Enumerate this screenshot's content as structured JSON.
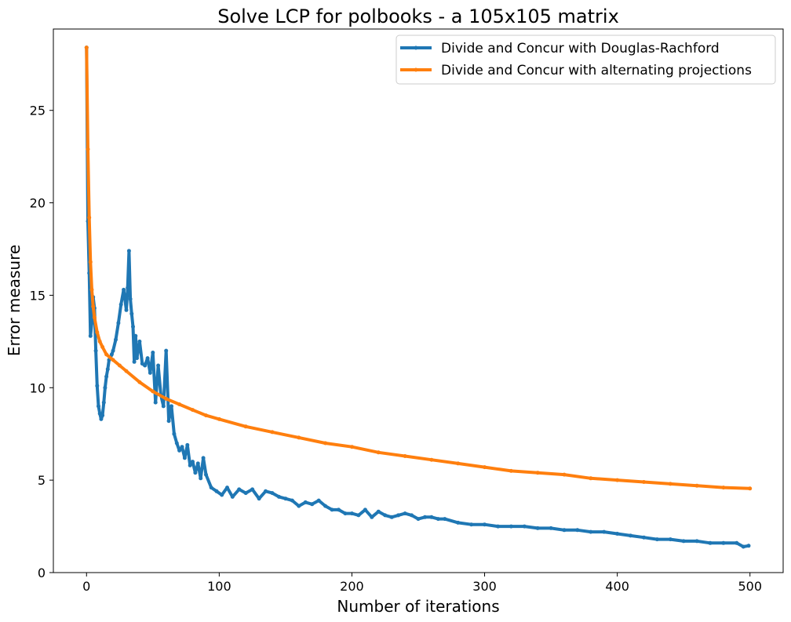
{
  "chart_data": {
    "type": "line",
    "title": "Solve LCP for polbooks - a 105x105 matrix",
    "xlabel": "Number of iterations",
    "ylabel": "Error measure",
    "xlim": [
      -25,
      525
    ],
    "ylim": [
      0,
      29.4
    ],
    "xticks": [
      0,
      100,
      200,
      300,
      400,
      500
    ],
    "yticks": [
      0,
      5,
      10,
      15,
      20,
      25
    ],
    "grid": false,
    "legend_position": "top-right",
    "series": [
      {
        "name": "Divide and Concur with Douglas-Rachford",
        "color": "#1f77b4",
        "x": [
          0,
          1,
          2,
          3,
          4,
          5,
          6,
          7,
          8,
          9,
          10,
          11,
          12,
          13,
          14,
          15,
          16,
          17,
          18,
          19,
          20,
          22,
          24,
          26,
          28,
          30,
          31,
          32,
          33,
          34,
          35,
          36,
          37,
          38,
          40,
          42,
          44,
          46,
          48,
          50,
          52,
          54,
          56,
          58,
          60,
          62,
          64,
          66,
          68,
          70,
          72,
          74,
          76,
          78,
          80,
          82,
          84,
          86,
          88,
          90,
          94,
          98,
          102,
          106,
          110,
          115,
          120,
          125,
          130,
          135,
          140,
          145,
          150,
          155,
          160,
          165,
          170,
          175,
          180,
          185,
          190,
          195,
          200,
          205,
          210,
          215,
          220,
          225,
          230,
          235,
          240,
          245,
          250,
          255,
          260,
          265,
          270,
          280,
          290,
          300,
          310,
          320,
          330,
          340,
          350,
          360,
          370,
          380,
          390,
          400,
          410,
          420,
          430,
          440,
          450,
          460,
          470,
          480,
          490,
          495,
          499
        ],
        "values": [
          28.4,
          19.0,
          16.2,
          12.8,
          13.5,
          14.9,
          14.3,
          12.0,
          10.1,
          9.0,
          8.6,
          8.3,
          8.5,
          9.2,
          10.0,
          10.6,
          11.0,
          11.5,
          11.6,
          11.8,
          12.0,
          12.6,
          13.5,
          14.5,
          15.3,
          14.2,
          15.4,
          17.4,
          14.8,
          14.0,
          13.3,
          11.4,
          12.8,
          11.6,
          12.5,
          11.3,
          11.2,
          11.6,
          10.8,
          11.9,
          9.2,
          11.2,
          9.6,
          9.0,
          12.0,
          8.2,
          9.0,
          7.5,
          7.0,
          6.6,
          6.8,
          6.2,
          6.9,
          5.8,
          6.0,
          5.4,
          5.9,
          5.1,
          6.2,
          5.3,
          4.6,
          4.4,
          4.2,
          4.6,
          4.1,
          4.5,
          4.3,
          4.5,
          4.0,
          4.4,
          4.3,
          4.1,
          4.0,
          3.9,
          3.6,
          3.8,
          3.7,
          3.9,
          3.6,
          3.4,
          3.4,
          3.2,
          3.2,
          3.1,
          3.4,
          3.0,
          3.3,
          3.1,
          3.0,
          3.1,
          3.2,
          3.1,
          2.9,
          3.0,
          3.0,
          2.9,
          2.9,
          2.7,
          2.6,
          2.6,
          2.5,
          2.5,
          2.5,
          2.4,
          2.4,
          2.3,
          2.3,
          2.2,
          2.2,
          2.1,
          2.0,
          1.9,
          1.8,
          1.8,
          1.7,
          1.7,
          1.6,
          1.6,
          1.6,
          1.4,
          1.45
        ]
      },
      {
        "name": "Divide and Concur with alternating projections",
        "color": "#ff7f0e",
        "x": [
          0,
          1,
          2,
          3,
          4,
          5,
          6,
          8,
          10,
          12,
          15,
          20,
          25,
          30,
          40,
          50,
          60,
          70,
          80,
          90,
          100,
          120,
          140,
          160,
          180,
          200,
          220,
          240,
          260,
          280,
          300,
          320,
          340,
          360,
          380,
          400,
          420,
          440,
          460,
          480,
          500
        ],
        "values": [
          28.4,
          22.9,
          19.2,
          16.8,
          15.3,
          14.4,
          13.8,
          13.0,
          12.5,
          12.2,
          11.8,
          11.5,
          11.2,
          10.9,
          10.3,
          9.8,
          9.4,
          9.1,
          8.8,
          8.5,
          8.3,
          7.9,
          7.6,
          7.3,
          7.0,
          6.8,
          6.5,
          6.3,
          6.1,
          5.9,
          5.7,
          5.5,
          5.4,
          5.3,
          5.1,
          5.0,
          4.9,
          4.8,
          4.7,
          4.6,
          4.55
        ]
      }
    ]
  }
}
